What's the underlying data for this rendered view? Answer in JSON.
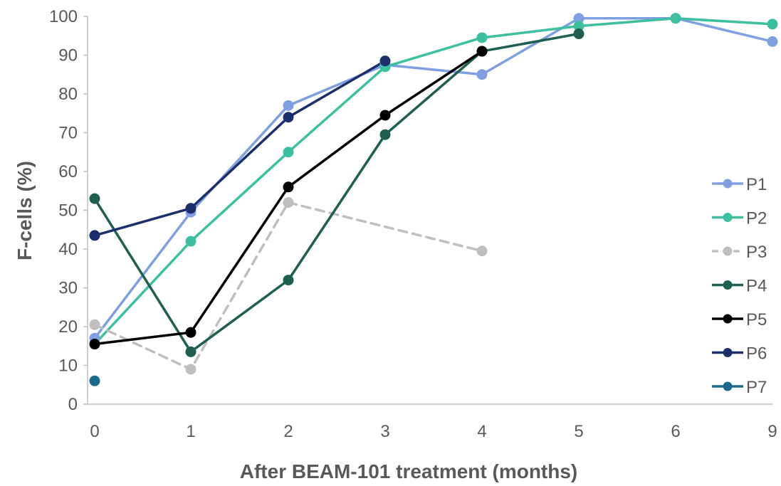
{
  "chart_data": {
    "type": "line",
    "title": "",
    "xlabel": "After BEAM-101 treatment (months)",
    "ylabel": "F-cells (%)",
    "categories": [
      "0",
      "1",
      "2",
      "3",
      "4",
      "5",
      "6",
      "9"
    ],
    "ylim": [
      0,
      100
    ],
    "yticks": [
      0,
      10,
      20,
      30,
      40,
      50,
      60,
      70,
      80,
      90,
      100
    ],
    "grid": false,
    "legend_position": "right",
    "series": [
      {
        "name": "P1",
        "color": "#7FA0E0",
        "dashed": false,
        "values": [
          17,
          49.5,
          77,
          87.5,
          85,
          99.5,
          99.5,
          93.5
        ]
      },
      {
        "name": "P2",
        "color": "#3DBFA0",
        "dashed": false,
        "values": [
          15.5,
          42,
          65,
          87,
          94.5,
          97.5,
          99.5,
          98
        ]
      },
      {
        "name": "P3",
        "color": "#BFBFBF",
        "dashed": true,
        "values": [
          20.5,
          9,
          52,
          null,
          39.5,
          null,
          null,
          null
        ]
      },
      {
        "name": "P4",
        "color": "#1F5F52",
        "dashed": false,
        "values": [
          53,
          13.5,
          32,
          69.5,
          91,
          95.5,
          null,
          null
        ]
      },
      {
        "name": "P5",
        "color": "#000000",
        "dashed": false,
        "values": [
          15.5,
          18.5,
          56,
          74.5,
          91,
          null,
          null,
          null
        ]
      },
      {
        "name": "P6",
        "color": "#1C2F6B",
        "dashed": false,
        "values": [
          43.5,
          50.5,
          74,
          88.5,
          null,
          null,
          null,
          null
        ]
      },
      {
        "name": "P7",
        "color": "#1A6B8A",
        "dashed": false,
        "values": [
          6,
          null,
          null,
          null,
          null,
          null,
          null,
          null
        ]
      }
    ]
  }
}
